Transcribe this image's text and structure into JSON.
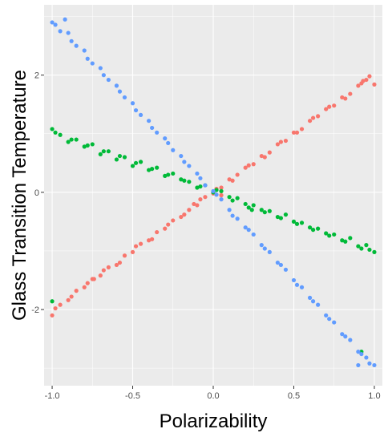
{
  "chart_data": {
    "type": "scatter",
    "title": "",
    "xlabel": "Polarizability",
    "ylabel": "Glass Transition Temperature",
    "xlim": [
      -1.05,
      1.05
    ],
    "ylim": [
      -3.3,
      3.2
    ],
    "x_ticks": [
      -1.0,
      -0.5,
      0.0,
      0.5,
      1.0
    ],
    "x_tick_labels": [
      "-1.0",
      "-0.5",
      "0.0",
      "0.5",
      "1.0"
    ],
    "y_ticks": [
      -2,
      0,
      2
    ],
    "y_tick_labels": [
      "-2",
      "0",
      "2"
    ],
    "grid": true,
    "legend": "none",
    "background": "#ebebeb",
    "series": [
      {
        "color": "#f8766d",
        "approx_trend": {
          "slope": 2.0,
          "intercept": 0.0
        },
        "x": [
          -1.0,
          -0.95,
          -0.9,
          -0.85,
          -0.8,
          -0.75,
          -0.7,
          -0.65,
          -0.6,
          -0.55,
          -0.5,
          -0.45,
          -0.4,
          -0.35,
          -0.3,
          -0.25,
          -0.2,
          -0.15,
          -0.1,
          -0.05,
          0.0,
          0.05,
          0.1,
          0.15,
          0.2,
          0.25,
          0.3,
          0.35,
          0.4,
          0.45,
          0.5,
          0.55,
          0.6,
          0.65,
          0.7,
          0.75,
          0.8,
          0.85,
          0.9,
          0.95,
          1.0,
          -0.98,
          -0.88,
          -0.78,
          -0.68,
          -0.58,
          -0.48,
          -0.38,
          -0.28,
          -0.18,
          -0.08,
          0.02,
          0.12,
          0.22,
          0.32,
          0.42,
          0.52,
          0.62,
          0.72,
          0.82,
          0.92,
          0.97,
          -0.74,
          -0.12,
          0.05,
          0.93
        ],
        "y": [
          -2.1,
          -1.92,
          -1.84,
          -1.68,
          -1.62,
          -1.48,
          -1.42,
          -1.28,
          -1.24,
          -1.08,
          -1.02,
          -0.88,
          -0.82,
          -0.68,
          -0.62,
          -0.48,
          -0.42,
          -0.3,
          -0.22,
          -0.08,
          -0.02,
          0.08,
          0.22,
          0.3,
          0.42,
          0.48,
          0.62,
          0.68,
          0.82,
          0.88,
          1.02,
          1.08,
          1.22,
          1.3,
          1.42,
          1.48,
          1.62,
          1.68,
          1.82,
          1.92,
          1.84,
          -1.98,
          -1.78,
          -1.55,
          -1.33,
          -1.2,
          -0.92,
          -0.8,
          -0.55,
          -0.38,
          -0.12,
          0.06,
          0.2,
          0.46,
          0.6,
          0.86,
          1.02,
          1.27,
          1.46,
          1.6,
          1.86,
          1.98,
          -1.48,
          -0.2,
          -0.05,
          1.9
        ]
      },
      {
        "color": "#00ba38",
        "approx_trend": {
          "slope": -1.0,
          "intercept": 0.0
        },
        "x": [
          -1.0,
          -0.95,
          -0.9,
          -0.85,
          -0.8,
          -0.75,
          -0.7,
          -0.65,
          -0.6,
          -0.55,
          -0.5,
          -0.45,
          -0.4,
          -0.35,
          -0.3,
          -0.25,
          -0.2,
          -0.15,
          -0.1,
          -0.05,
          0.0,
          0.05,
          0.1,
          0.15,
          0.2,
          0.25,
          0.3,
          0.35,
          0.4,
          0.45,
          0.5,
          0.55,
          0.6,
          0.65,
          0.7,
          0.75,
          0.8,
          0.85,
          0.9,
          0.95,
          1.0,
          -0.98,
          -0.88,
          -0.78,
          -0.68,
          -0.58,
          -0.48,
          -0.38,
          -0.28,
          -0.18,
          -0.08,
          0.02,
          0.12,
          0.22,
          0.32,
          0.42,
          0.52,
          0.62,
          0.72,
          0.82,
          0.92,
          0.97,
          -1.0,
          0.92,
          0.24
        ],
        "y": [
          1.08,
          0.98,
          0.86,
          0.9,
          0.78,
          0.82,
          0.65,
          0.7,
          0.56,
          0.6,
          0.45,
          0.52,
          0.38,
          0.42,
          0.28,
          0.32,
          0.22,
          0.18,
          0.08,
          0.12,
          0.0,
          0.02,
          -0.08,
          -0.1,
          -0.2,
          -0.22,
          -0.3,
          -0.32,
          -0.42,
          -0.38,
          -0.5,
          -0.52,
          -0.6,
          -0.62,
          -0.7,
          -0.72,
          -0.82,
          -0.78,
          -0.92,
          -0.9,
          -1.02,
          1.02,
          0.9,
          0.8,
          0.7,
          0.62,
          0.5,
          0.4,
          0.3,
          0.2,
          0.1,
          0.04,
          -0.14,
          -0.26,
          -0.34,
          -0.44,
          -0.54,
          -0.64,
          -0.74,
          -0.84,
          -0.96,
          -0.98,
          -1.86,
          -2.72,
          -0.3
        ]
      },
      {
        "color": "#619cff",
        "approx_trend": {
          "slope": -3.0,
          "intercept": 0.0
        },
        "x": [
          -1.0,
          -0.95,
          -0.9,
          -0.85,
          -0.8,
          -0.75,
          -0.7,
          -0.65,
          -0.6,
          -0.55,
          -0.5,
          -0.45,
          -0.4,
          -0.35,
          -0.3,
          -0.25,
          -0.2,
          -0.15,
          -0.1,
          -0.05,
          0.0,
          0.05,
          0.1,
          0.15,
          0.2,
          0.25,
          0.3,
          0.35,
          0.4,
          0.45,
          0.5,
          0.55,
          0.6,
          0.65,
          0.7,
          0.75,
          0.8,
          0.85,
          0.9,
          0.95,
          1.0,
          -0.98,
          -0.88,
          -0.78,
          -0.68,
          -0.58,
          -0.48,
          -0.38,
          -0.28,
          -0.18,
          -0.08,
          0.02,
          0.12,
          0.22,
          0.32,
          0.42,
          0.52,
          0.62,
          0.72,
          0.82,
          0.92,
          0.97,
          -0.92,
          0.9
        ],
        "y": [
          2.9,
          2.75,
          2.72,
          2.5,
          2.42,
          2.2,
          2.12,
          1.92,
          1.82,
          1.62,
          1.52,
          1.32,
          1.22,
          1.02,
          0.92,
          0.72,
          0.62,
          0.45,
          0.32,
          0.12,
          0.02,
          -0.12,
          -0.3,
          -0.45,
          -0.6,
          -0.72,
          -0.9,
          -1.02,
          -1.2,
          -1.32,
          -1.5,
          -1.62,
          -1.8,
          -1.92,
          -2.1,
          -2.22,
          -2.42,
          -2.52,
          -2.72,
          -2.82,
          -2.95,
          2.86,
          2.58,
          2.28,
          2.0,
          1.72,
          1.4,
          1.1,
          0.84,
          0.52,
          0.24,
          -0.04,
          -0.4,
          -0.64,
          -0.96,
          -1.24,
          -1.58,
          -1.86,
          -2.16,
          -2.46,
          -2.76,
          -2.92,
          2.95,
          -2.95
        ]
      }
    ]
  }
}
